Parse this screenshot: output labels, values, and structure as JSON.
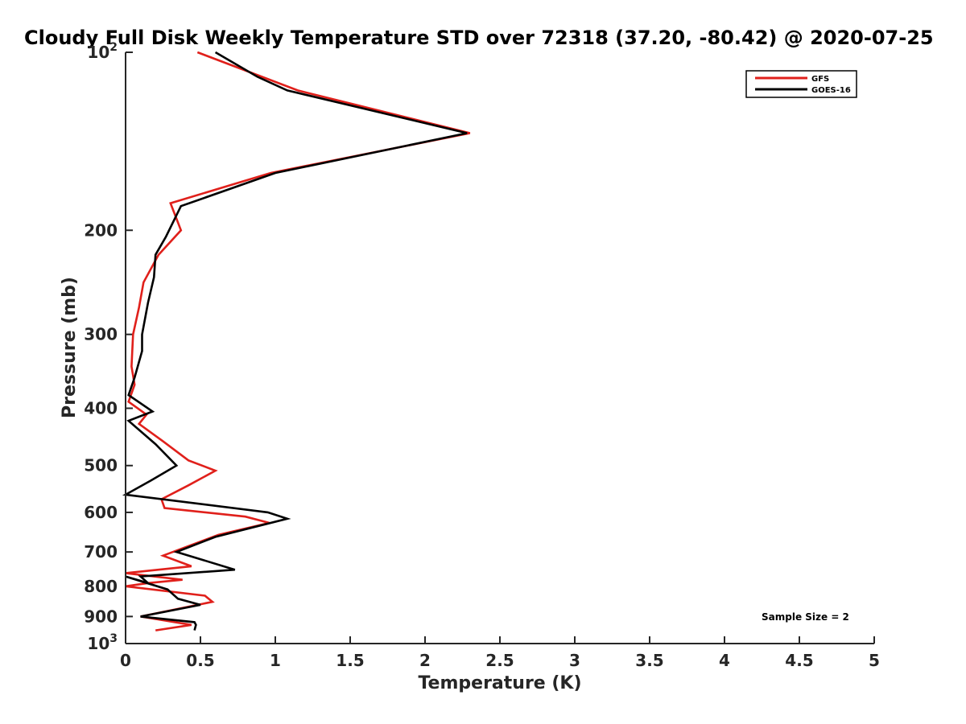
{
  "chart_data": {
    "type": "line",
    "title": "Cloudy Full Disk Weekly Temperature STD over 72318 (37.20, -80.42) @ 2020-07-25",
    "xlabel": "Temperature (K)",
    "ylabel": "Pressure (mb)",
    "xlim": [
      0,
      5
    ],
    "ylim": [
      100,
      1000
    ],
    "y_scale": "log",
    "y_reversed": true,
    "x_ticks": [
      0,
      0.5,
      1,
      1.5,
      2,
      2.5,
      3,
      3.5,
      4,
      4.5,
      5
    ],
    "x_tick_labels": [
      "0",
      "0.5",
      "1",
      "1.5",
      "2",
      "2.5",
      "3",
      "3.5",
      "4",
      "4.5",
      "5"
    ],
    "y_ticks": [
      {
        "value": 100,
        "base": "10",
        "exp": "2"
      },
      {
        "value": 200,
        "label": "200"
      },
      {
        "value": 300,
        "label": "300"
      },
      {
        "value": 400,
        "label": "400"
      },
      {
        "value": 500,
        "label": "500"
      },
      {
        "value": 600,
        "label": "600"
      },
      {
        "value": 700,
        "label": "700"
      },
      {
        "value": 800,
        "label": "800"
      },
      {
        "value": 900,
        "label": "900"
      },
      {
        "value": 1000,
        "base": "10",
        "exp": "3"
      }
    ],
    "legend_position": "top-right",
    "annotation": "Sample Size = 2",
    "series": [
      {
        "name": "GFS",
        "color": "#e0201b",
        "points": [
          [
            0.48,
            100
          ],
          [
            1.15,
            116
          ],
          [
            2.3,
            137
          ],
          [
            0.97,
            160
          ],
          [
            0.3,
            180
          ],
          [
            0.37,
            200
          ],
          [
            0.22,
            220
          ],
          [
            0.12,
            245
          ],
          [
            0.09,
            270
          ],
          [
            0.05,
            300
          ],
          [
            0.04,
            340
          ],
          [
            0.06,
            365
          ],
          [
            0.02,
            390
          ],
          [
            0.14,
            410
          ],
          [
            0.09,
            425
          ],
          [
            0.25,
            455
          ],
          [
            0.42,
            490
          ],
          [
            0.6,
            510
          ],
          [
            0.42,
            540
          ],
          [
            0.24,
            570
          ],
          [
            0.26,
            590
          ],
          [
            0.8,
            610
          ],
          [
            0.96,
            625
          ],
          [
            0.62,
            655
          ],
          [
            0.25,
            710
          ],
          [
            0.44,
            740
          ],
          [
            0.0,
            760
          ],
          [
            0.38,
            780
          ],
          [
            0.15,
            790
          ],
          [
            0.0,
            800
          ],
          [
            0.53,
            830
          ],
          [
            0.58,
            850
          ],
          [
            0.1,
            900
          ],
          [
            0.44,
            930
          ],
          [
            0.2,
            950
          ]
        ]
      },
      {
        "name": "GOES-16",
        "color": "#000000",
        "points": [
          [
            0.6,
            100
          ],
          [
            0.88,
            110
          ],
          [
            1.08,
            116
          ],
          [
            2.28,
            137
          ],
          [
            1.0,
            160
          ],
          [
            0.37,
            182
          ],
          [
            0.27,
            205
          ],
          [
            0.2,
            220
          ],
          [
            0.19,
            240
          ],
          [
            0.15,
            265
          ],
          [
            0.11,
            300
          ],
          [
            0.11,
            320
          ],
          [
            0.06,
            355
          ],
          [
            0.02,
            380
          ],
          [
            0.18,
            405
          ],
          [
            0.02,
            420
          ],
          [
            0.2,
            460
          ],
          [
            0.34,
            500
          ],
          [
            0.17,
            530
          ],
          [
            0.0,
            560
          ],
          [
            0.95,
            600
          ],
          [
            1.08,
            615
          ],
          [
            0.6,
            660
          ],
          [
            0.34,
            700
          ],
          [
            0.73,
            750
          ],
          [
            0.1,
            770
          ],
          [
            0.15,
            790
          ],
          [
            0.0,
            770
          ],
          [
            0.28,
            810
          ],
          [
            0.35,
            840
          ],
          [
            0.5,
            860
          ],
          [
            0.1,
            900
          ],
          [
            0.46,
            920
          ],
          [
            0.47,
            930
          ],
          [
            0.46,
            950
          ]
        ]
      }
    ]
  }
}
